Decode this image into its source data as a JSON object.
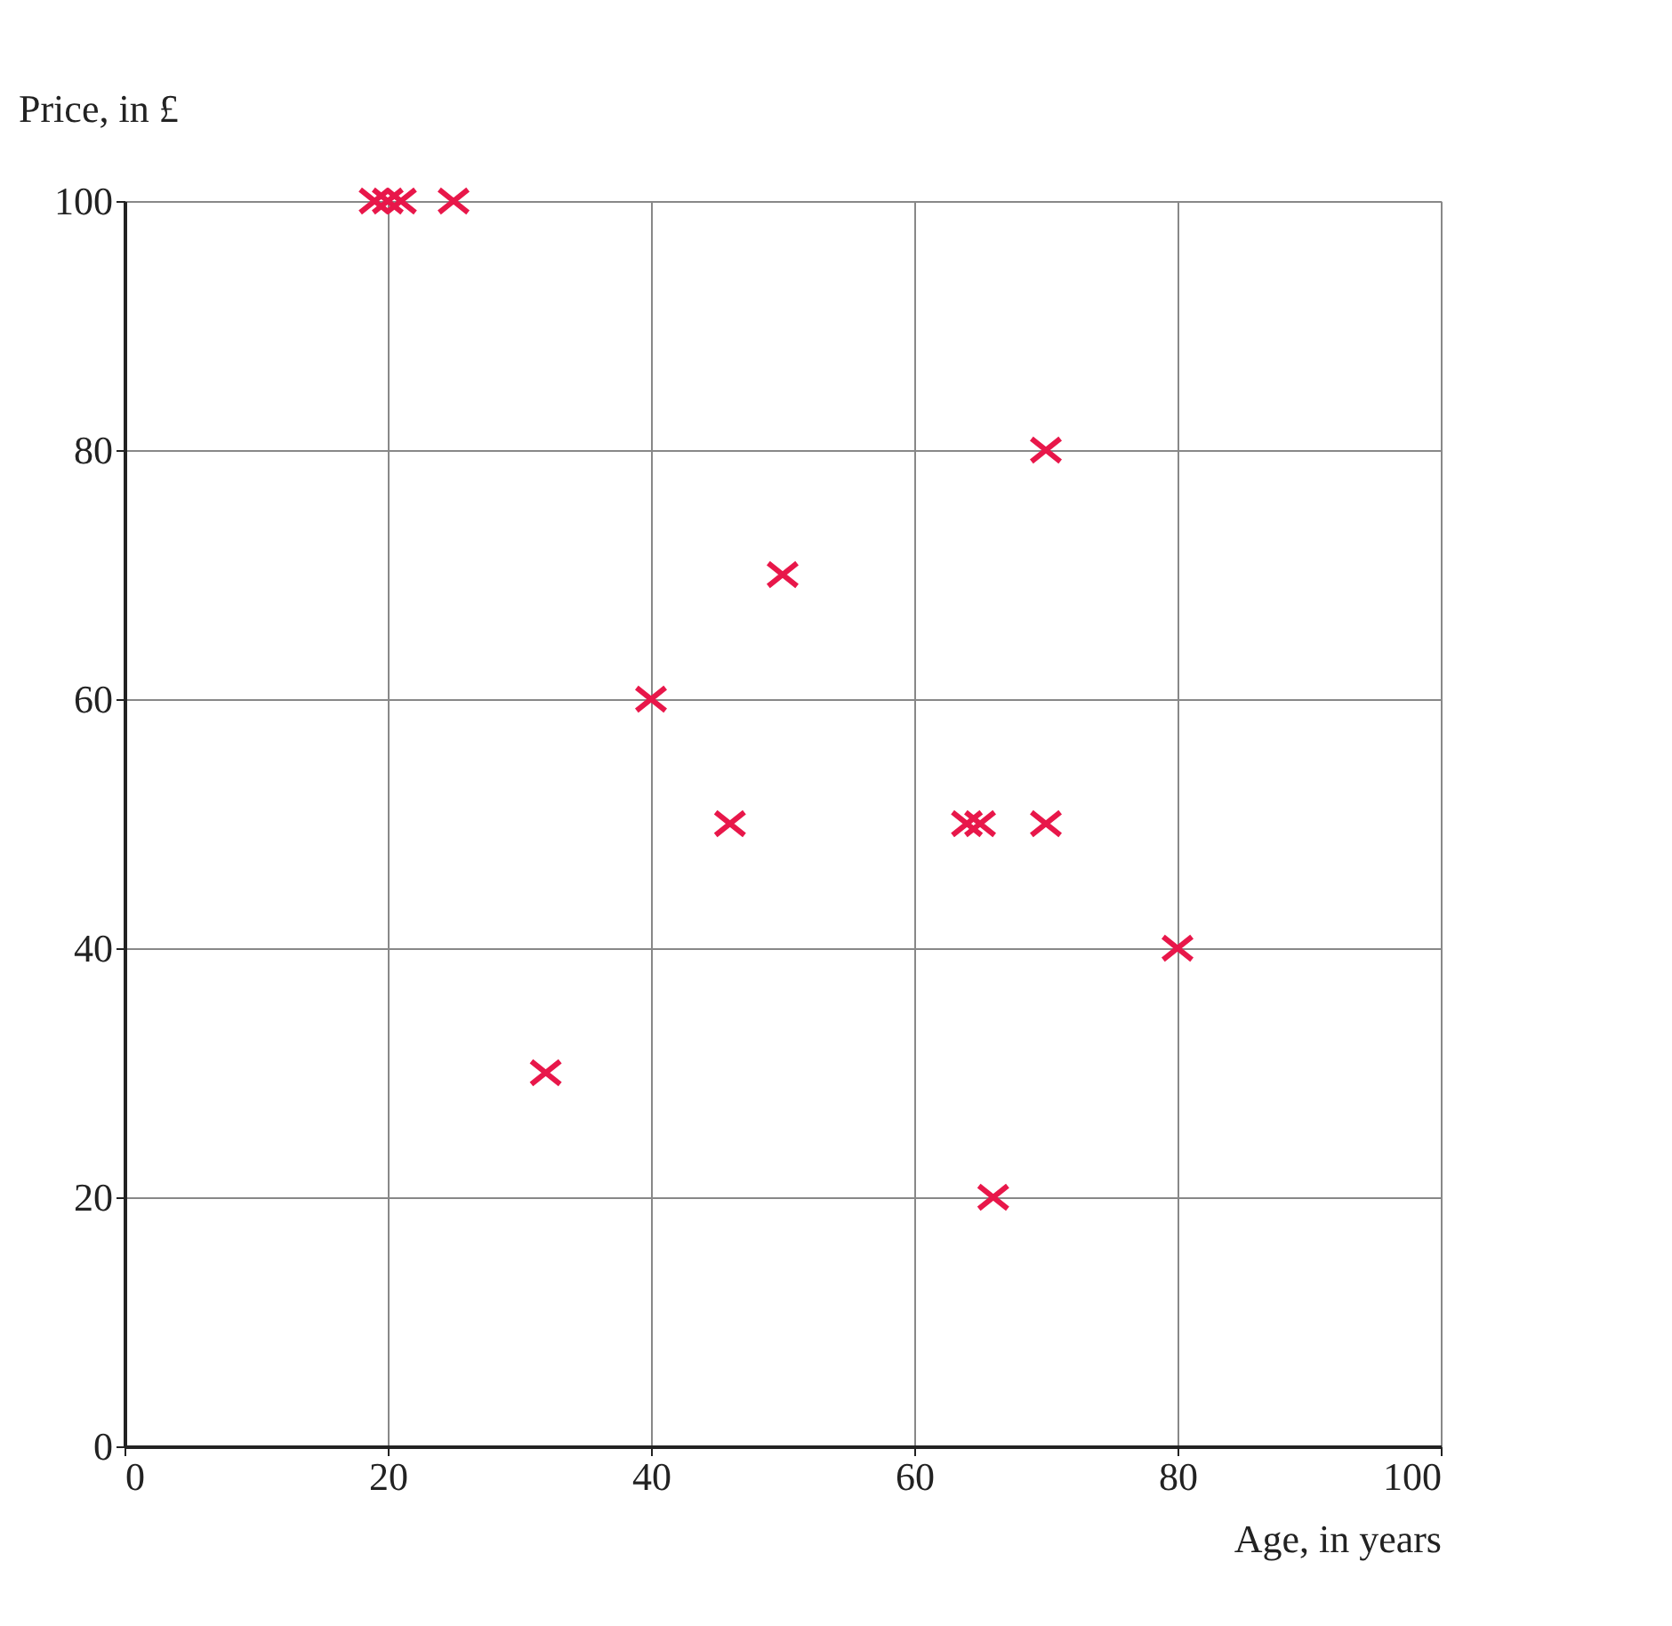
{
  "chart_data": {
    "type": "scatter",
    "xlabel": "Age, in years",
    "ylabel": "Price, in £",
    "x": [
      19,
      20,
      21,
      25,
      32,
      40,
      46,
      50,
      64,
      65,
      66,
      70,
      70,
      80
    ],
    "values": [
      100,
      100,
      100,
      100,
      30,
      60,
      50,
      70,
      50,
      50,
      20,
      80,
      50,
      40
    ],
    "color": "#e8174a",
    "marker": "cross",
    "xlim": [
      0,
      100
    ],
    "ylim": [
      0,
      100
    ],
    "xticks": [
      0,
      20,
      40,
      60,
      80,
      100
    ],
    "yticks": [
      0,
      20,
      40,
      60,
      80,
      100
    ],
    "grid": true
  }
}
